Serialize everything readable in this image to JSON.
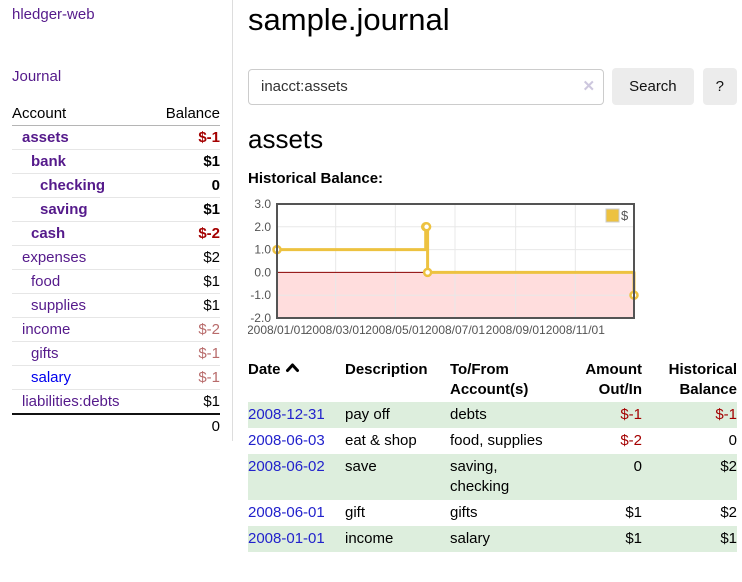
{
  "app": {
    "brand": "hledger-web"
  },
  "sidebar": {
    "journal_link": "Journal",
    "accounts": {
      "col_account": "Account",
      "col_balance": "Balance",
      "rows": [
        {
          "account": "assets",
          "balance": "$-1",
          "indent": 1,
          "emph": true,
          "neg": "strong"
        },
        {
          "account": "bank",
          "balance": "$1",
          "indent": 2,
          "emph": true
        },
        {
          "account": "checking",
          "balance": "0",
          "indent": 3,
          "emph": true
        },
        {
          "account": "saving",
          "balance": "$1",
          "indent": 3,
          "emph": true
        },
        {
          "account": "cash",
          "balance": "$-2",
          "indent": 2,
          "emph": true,
          "neg": "strong"
        },
        {
          "account": "expenses",
          "balance": "$2",
          "indent": 1
        },
        {
          "account": "food",
          "balance": "$1",
          "indent": 2
        },
        {
          "account": "supplies",
          "balance": "$1",
          "indent": 2
        },
        {
          "account": "income",
          "balance": "$-2",
          "indent": 1,
          "neg": "soft"
        },
        {
          "account": "gifts",
          "balance": "$-1",
          "indent": 2,
          "neg": "soft"
        },
        {
          "account": "salary",
          "balance": "$-1",
          "indent": 2,
          "neg": "soft",
          "link": "blue"
        },
        {
          "account": "liabilities:debts",
          "balance": "$1",
          "indent": 1
        }
      ],
      "total": "0"
    }
  },
  "main": {
    "title": "sample.journal",
    "search": {
      "query": "inacct:assets",
      "clear_icon": "✕",
      "button": "Search",
      "help_button": "?"
    },
    "account_title": "assets",
    "chart_title": "Historical Balance:"
  },
  "register": {
    "headers": {
      "date": "Date",
      "description": "Description",
      "accounts": "To/From\nAccount(s)",
      "amount": "Amount\nOut/In",
      "balance": "Historical\nBalance"
    },
    "rows": [
      {
        "date": "2008-12-31",
        "description": "pay off",
        "accounts": "debts",
        "amount": "$-1",
        "balance": "$-1",
        "amount_negative": true,
        "balance_negative": true
      },
      {
        "date": "2008-06-03",
        "description": "eat & shop",
        "accounts": "food, supplies",
        "amount": "$-2",
        "balance": "0",
        "amount_negative": true,
        "balance_negative": false
      },
      {
        "date": "2008-06-02",
        "description": "save",
        "accounts": "saving,\nchecking",
        "amount": "0",
        "balance": "$2",
        "amount_negative": false,
        "balance_negative": false
      },
      {
        "date": "2008-06-01",
        "description": "gift",
        "accounts": "gifts",
        "amount": "$1",
        "balance": "$2",
        "amount_negative": false,
        "balance_negative": false
      },
      {
        "date": "2008-01-01",
        "description": "income",
        "accounts": "salary",
        "amount": "$1",
        "balance": "$1",
        "amount_negative": false,
        "balance_negative": false
      }
    ]
  },
  "chart_data": {
    "type": "line",
    "title": "Historical Balance:",
    "series": [
      {
        "name": "$",
        "color": "#edc240",
        "step": true,
        "points": [
          [
            "2008-01-01",
            1
          ],
          [
            "2008-06-01",
            2
          ],
          [
            "2008-06-02",
            2
          ],
          [
            "2008-06-03",
            0
          ],
          [
            "2008-12-31",
            -1
          ]
        ]
      }
    ],
    "x_range": [
      "2008-01-01",
      "2008-12-31"
    ],
    "x_ticks": [
      {
        "date": "2008-01-01",
        "label": "2008/01/01"
      },
      {
        "date": "2008-03-01",
        "label": "2008/03/01"
      },
      {
        "date": "2008-05-01",
        "label": "2008/05/01"
      },
      {
        "date": "2008-07-01",
        "label": "2008/07/01"
      },
      {
        "date": "2008-09-01",
        "label": "2008/09/01"
      },
      {
        "date": "2008-11-01",
        "label": "2008/11/01"
      }
    ],
    "y_ticks": [
      3.0,
      2.0,
      1.0,
      0.0,
      -1.0,
      -2.0
    ],
    "ylim": [
      -2,
      3
    ],
    "grid": true,
    "legend_position": "top-right",
    "negative_region_fill": "#ffdddd",
    "zero_line_color": "#8b0000",
    "border_color": "#545454",
    "grid_color": "#e8e8e8",
    "axis_label_color": "#545454"
  },
  "colors": {
    "purple_link": "#551a8b",
    "blue_link": "#0000ee",
    "neg_strong": "#a40000",
    "neg_soft": "#b86b6b",
    "row_green": "#ddeedd",
    "button_bg": "#ececec",
    "input_border": "#cccccc",
    "divider": "#dddddd",
    "clear_icon": "#cdc7de"
  }
}
